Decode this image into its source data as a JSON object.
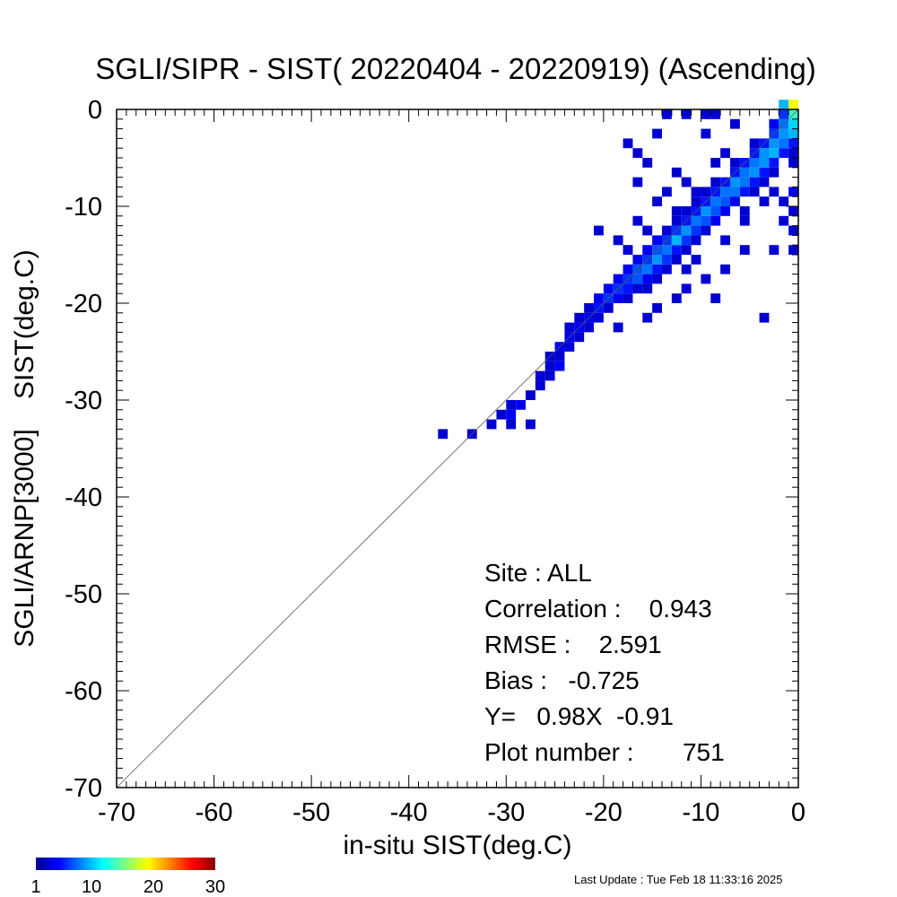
{
  "chart_data": {
    "type": "heatmap",
    "title": "SGLI/SIPR - SIST( 20220404 - 20220919) (Ascending)",
    "xlabel": "in-situ SIST(deg.C)",
    "ylabel": "SGLI/ARNP[3000]    SIST(deg.C)",
    "xlim": [
      -70,
      0
    ],
    "ylim": [
      -70,
      0
    ],
    "x_ticks": [
      "-70",
      "-60",
      "-50",
      "-40",
      "-30",
      "-20",
      "-10",
      "0"
    ],
    "y_ticks": [
      "0",
      "-10",
      "-20",
      "-30",
      "-40",
      "-50",
      "-60",
      "-70"
    ],
    "tick_values": [
      -70,
      -60,
      -50,
      -40,
      -30,
      -20,
      -10,
      0
    ],
    "bin_size": 1,
    "one_to_one_line": true,
    "colorbar": {
      "min": 1,
      "max": 30,
      "tick_values": [
        1,
        10,
        20,
        30
      ],
      "tick_labels": [
        "1",
        "10",
        "20",
        "30"
      ]
    },
    "stats_lines": [
      "Site : ALL",
      "Correlation :    0.943",
      "RMSE :    2.591",
      "Bias :   -0.725",
      "Y=   0.98X  -0.91",
      "Plot number :       751"
    ],
    "footer": "Last Update : Tue Feb 18 11:33:16 2025",
    "cells": [
      [
        -37,
        -34,
        1
      ],
      [
        -34,
        -34,
        1
      ],
      [
        -32,
        -33,
        1
      ],
      [
        -30,
        -33,
        1
      ],
      [
        -28,
        -33,
        1
      ],
      [
        -31,
        -32,
        1
      ],
      [
        -30,
        -32,
        2
      ],
      [
        -30,
        -31,
        1
      ],
      [
        -29,
        -31,
        2
      ],
      [
        -28,
        -30,
        1
      ],
      [
        -27,
        -29,
        1
      ],
      [
        -27,
        -28,
        1
      ],
      [
        -26,
        -28,
        1
      ],
      [
        -26,
        -27,
        1
      ],
      [
        -25,
        -27,
        2
      ],
      [
        -26,
        -26,
        1
      ],
      [
        -25,
        -26,
        1
      ],
      [
        -25,
        -25,
        2
      ],
      [
        -24,
        -25,
        1
      ],
      [
        -24,
        -24,
        2
      ],
      [
        -23,
        -24,
        1
      ],
      [
        -24,
        -23,
        1
      ],
      [
        -23,
        -23,
        2
      ],
      [
        -22,
        -23,
        1
      ],
      [
        -23,
        -22,
        1
      ],
      [
        -22,
        -22,
        2
      ],
      [
        -21,
        -22,
        1
      ],
      [
        -22,
        -21,
        1
      ],
      [
        -21,
        -21,
        3
      ],
      [
        -20,
        -21,
        1
      ],
      [
        -21,
        -20,
        2
      ],
      [
        -20,
        -20,
        4
      ],
      [
        -19,
        -20,
        2
      ],
      [
        -18,
        -20,
        1
      ],
      [
        -20,
        -19,
        2
      ],
      [
        -19,
        -19,
        4
      ],
      [
        -18,
        -19,
        3
      ],
      [
        -17,
        -19,
        1
      ],
      [
        -16,
        -19,
        1
      ],
      [
        -19,
        -18,
        2
      ],
      [
        -18,
        -18,
        4
      ],
      [
        -17,
        -18,
        5
      ],
      [
        -16,
        -18,
        2
      ],
      [
        -15,
        -18,
        1
      ],
      [
        -18,
        -17,
        2
      ],
      [
        -17,
        -17,
        5
      ],
      [
        -16,
        -17,
        6
      ],
      [
        -15,
        -17,
        3
      ],
      [
        -14,
        -17,
        1
      ],
      [
        -17,
        -16,
        2
      ],
      [
        -16,
        -16,
        4
      ],
      [
        -15,
        -16,
        7
      ],
      [
        -14,
        -16,
        4
      ],
      [
        -13,
        -16,
        1
      ],
      [
        -16,
        -15,
        2
      ],
      [
        -15,
        -15,
        5
      ],
      [
        -14,
        -15,
        6
      ],
      [
        -13,
        -15,
        3
      ],
      [
        -12,
        -15,
        1
      ],
      [
        -15,
        -14,
        2
      ],
      [
        -14,
        -14,
        4
      ],
      [
        -13,
        -14,
        8
      ],
      [
        -12,
        -14,
        4
      ],
      [
        -11,
        -14,
        1
      ],
      [
        -14,
        -13,
        1
      ],
      [
        -13,
        -13,
        4
      ],
      [
        -12,
        -13,
        7
      ],
      [
        -11,
        -13,
        4
      ],
      [
        -10,
        -13,
        1
      ],
      [
        -13,
        -12,
        1
      ],
      [
        -12,
        -12,
        3
      ],
      [
        -11,
        -12,
        6
      ],
      [
        -10,
        -12,
        5
      ],
      [
        -9,
        -12,
        2
      ],
      [
        -12,
        -11,
        1
      ],
      [
        -11,
        -11,
        3
      ],
      [
        -10,
        -11,
        7
      ],
      [
        -9,
        -11,
        5
      ],
      [
        -8,
        -11,
        2
      ],
      [
        -11,
        -10,
        1
      ],
      [
        -10,
        -10,
        3
      ],
      [
        -9,
        -10,
        6
      ],
      [
        -8,
        -10,
        5
      ],
      [
        -7,
        -10,
        2
      ],
      [
        -10,
        -9,
        1
      ],
      [
        -9,
        -9,
        3
      ],
      [
        -8,
        -9,
        6
      ],
      [
        -7,
        -9,
        6
      ],
      [
        -6,
        -9,
        3
      ],
      [
        -5,
        -9,
        1
      ],
      [
        -9,
        -8,
        1
      ],
      [
        -8,
        -8,
        3
      ],
      [
        -7,
        -8,
        7
      ],
      [
        -6,
        -8,
        6
      ],
      [
        -5,
        -8,
        3
      ],
      [
        -4,
        -8,
        1
      ],
      [
        -7,
        -7,
        3
      ],
      [
        -6,
        -7,
        6
      ],
      [
        -5,
        -7,
        7
      ],
      [
        -4,
        -7,
        3
      ],
      [
        -3,
        -7,
        1
      ],
      [
        -7,
        -6,
        1
      ],
      [
        -6,
        -6,
        3
      ],
      [
        -5,
        -6,
        6
      ],
      [
        -4,
        -6,
        7
      ],
      [
        -3,
        -6,
        3
      ],
      [
        -1,
        -6,
        1
      ],
      [
        -5,
        -5,
        3
      ],
      [
        -4,
        -5,
        7
      ],
      [
        -3,
        -5,
        8
      ],
      [
        -2,
        -5,
        3
      ],
      [
        -1,
        -5,
        1
      ],
      [
        -5,
        -4,
        1
      ],
      [
        -4,
        -4,
        3
      ],
      [
        -3,
        -4,
        7
      ],
      [
        -2,
        -4,
        6
      ],
      [
        -1,
        -4,
        3
      ],
      [
        -3,
        -3,
        4
      ],
      [
        -2,
        -3,
        7
      ],
      [
        -1,
        -3,
        8
      ],
      [
        -3,
        -2,
        2
      ],
      [
        -2,
        -2,
        6
      ],
      [
        -1,
        -2,
        9
      ],
      [
        -2,
        -1,
        4
      ],
      [
        -1,
        -1,
        12
      ],
      [
        -2,
        0,
        8
      ],
      [
        -1,
        0,
        18
      ],
      [
        -16,
        -22,
        1
      ],
      [
        -15,
        -21,
        1
      ],
      [
        -19,
        -23,
        1
      ],
      [
        -12,
        -19,
        1
      ],
      [
        -9,
        -20,
        1
      ],
      [
        -4,
        -22,
        1
      ],
      [
        -11,
        -16,
        1
      ],
      [
        -8,
        -17,
        1
      ],
      [
        -14,
        -9,
        1
      ],
      [
        -13,
        -11,
        1
      ],
      [
        -16,
        -13,
        1
      ],
      [
        -17,
        -12,
        1
      ],
      [
        -18,
        -15,
        1
      ],
      [
        -21,
        -13,
        1
      ],
      [
        -19,
        -14,
        1
      ],
      [
        -15,
        -10,
        1
      ],
      [
        -13,
        -7,
        1
      ],
      [
        -17,
        -5,
        1
      ],
      [
        -18,
        -4,
        1
      ],
      [
        -15,
        -3,
        1
      ],
      [
        -14,
        -1,
        1
      ],
      [
        -12,
        -1,
        1
      ],
      [
        -10,
        -1,
        1
      ],
      [
        -9,
        -1,
        1
      ],
      [
        -10,
        -3,
        1
      ],
      [
        -7,
        -2,
        1
      ],
      [
        -8,
        -5,
        1
      ],
      [
        -9,
        -6,
        1
      ],
      [
        -11,
        -9,
        1
      ],
      [
        -12,
        -8,
        1
      ],
      [
        -4,
        -10,
        1
      ],
      [
        -1,
        -9,
        2
      ],
      [
        -1,
        -11,
        1
      ],
      [
        -1,
        -13,
        1
      ],
      [
        -2,
        -12,
        1
      ],
      [
        -1,
        -15,
        1
      ],
      [
        -3,
        -15,
        1
      ],
      [
        -6,
        -12,
        1
      ],
      [
        -8,
        -14,
        1
      ],
      [
        -6,
        -15,
        1
      ],
      [
        -3,
        -9,
        1
      ],
      [
        -2,
        -10,
        1
      ],
      [
        -6,
        -11,
        1
      ],
      [
        -12,
        -17,
        1
      ],
      [
        -10,
        -18,
        1
      ],
      [
        -13,
        -20,
        1
      ],
      [
        -16,
        -6,
        1
      ],
      [
        -17,
        -8,
        1
      ]
    ]
  }
}
